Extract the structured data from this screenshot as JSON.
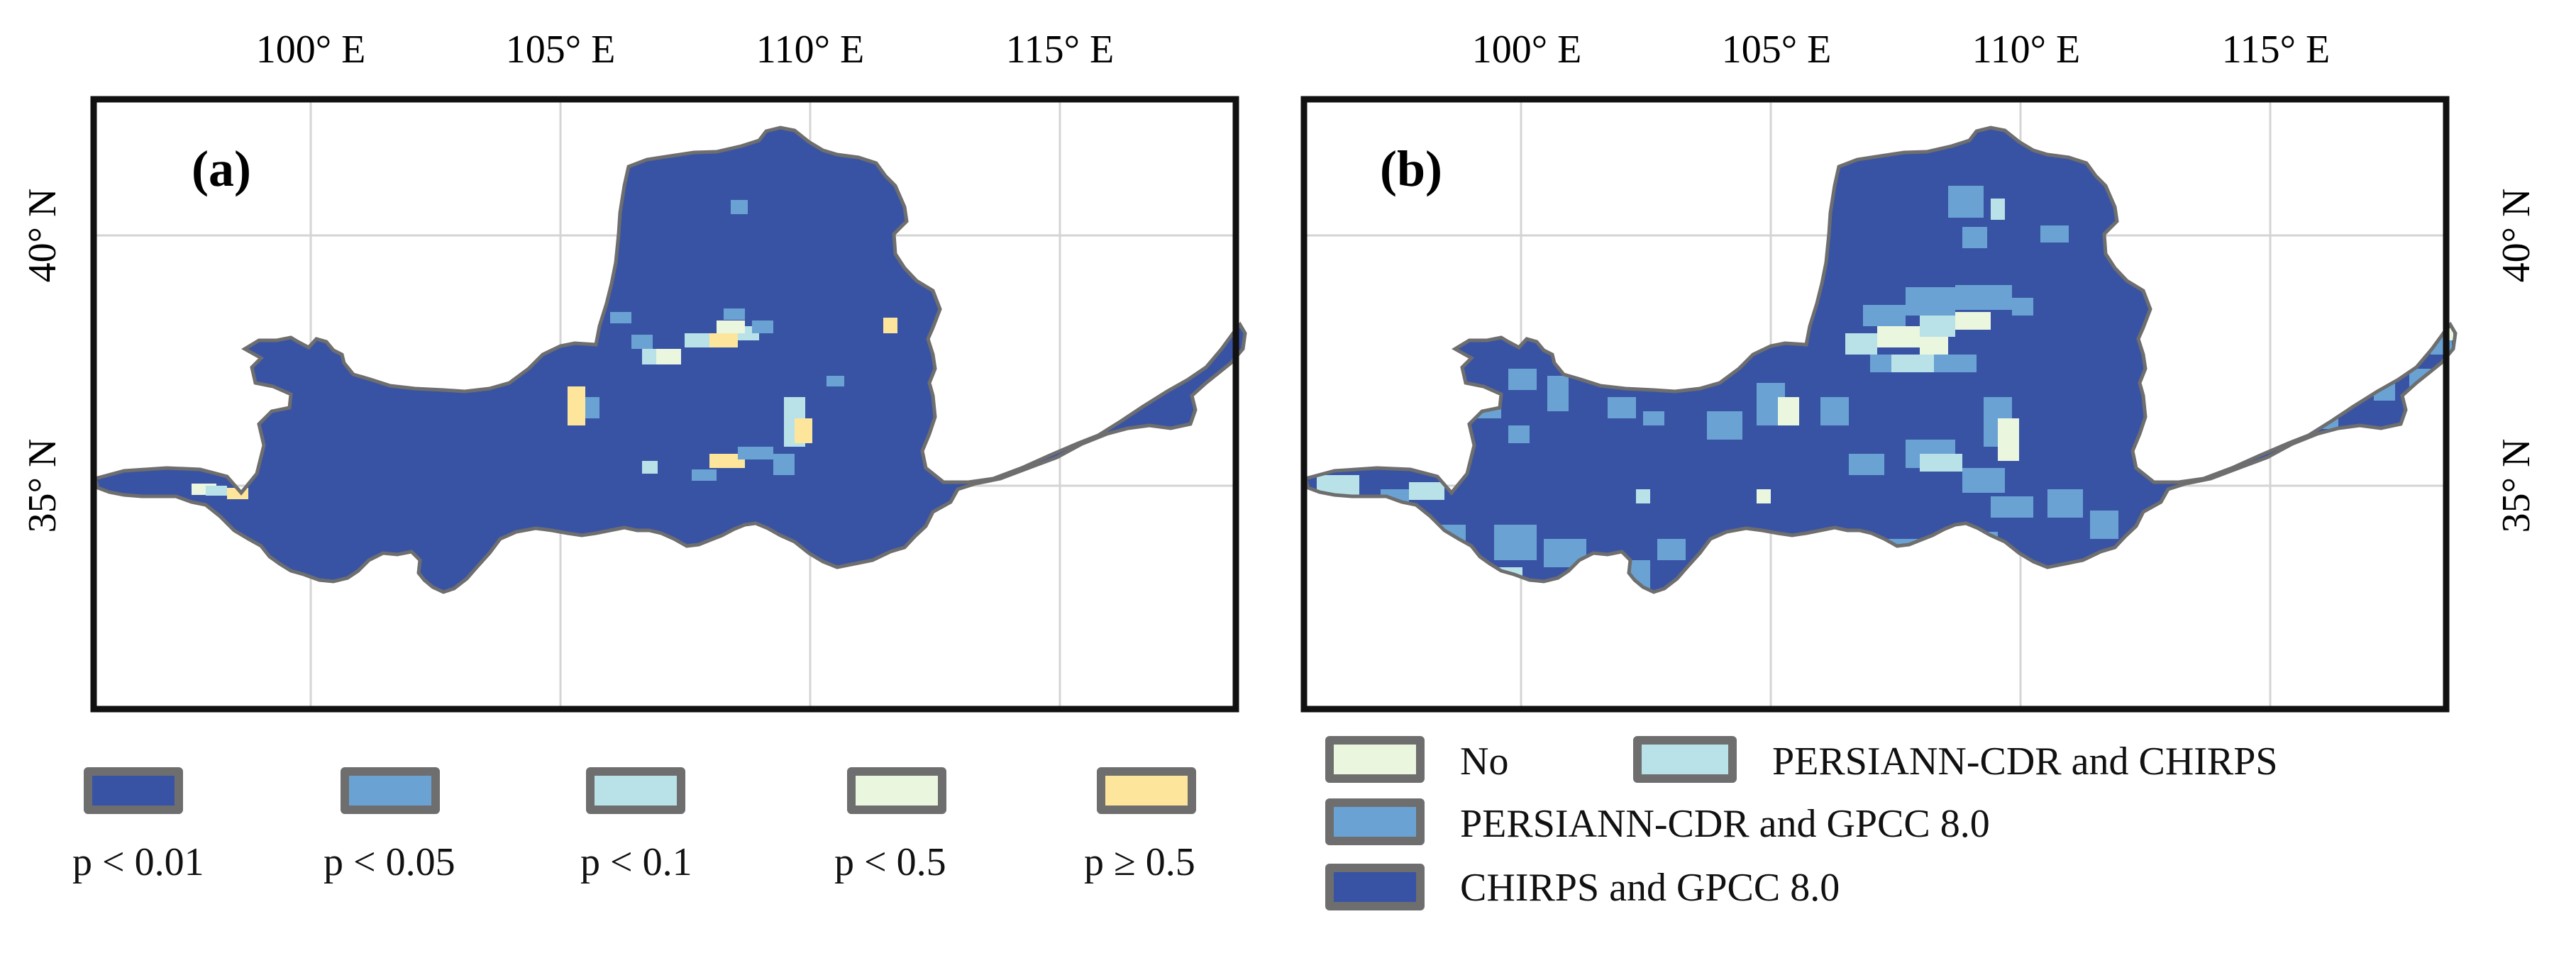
{
  "colors": {
    "p001": "#3953a4",
    "p005": "#6aa3d3",
    "p01": "#b9e2e8",
    "p05": "#eaf6de",
    "pge05": "#fde69b",
    "frame": "#111111",
    "outline": "#6e6e6e",
    "grid": "#d4d4d4",
    "swatch_border": "#6e6e6e"
  },
  "panels": [
    {
      "label": "(a)",
      "lon_ticks": [
        "100° E",
        "105° E",
        "110° E",
        "115° E"
      ],
      "lat_ticks": [
        "40° N",
        "35° N"
      ],
      "lat_tick_side": "left"
    },
    {
      "label": "(b)",
      "lon_ticks": [
        "100° E",
        "105° E",
        "110° E",
        "115° E"
      ],
      "lat_ticks": [
        "40° N",
        "35° N"
      ],
      "lat_tick_side": "right"
    }
  ],
  "legend_a": [
    {
      "label": "p < 0.01",
      "color": "#3953a4"
    },
    {
      "label": "p < 0.05",
      "color": "#6aa3d3"
    },
    {
      "label": "p < 0.1",
      "color": "#b9e2e8"
    },
    {
      "label": "p < 0.5",
      "color": "#eaf6de"
    },
    {
      "label": "p ≥ 0.5",
      "color": "#fde69b"
    }
  ],
  "legend_b": [
    {
      "label": "No",
      "color": "#eaf6de"
    },
    {
      "label": "PERSIANN-CDR and CHIRPS",
      "color": "#b9e2e8"
    },
    {
      "label": "PERSIANN-CDR and GPCC 8.0",
      "color": "#6aa3d3"
    },
    {
      "label": "CHIRPS and GPCC 8.0",
      "color": "#3953a4"
    }
  ]
}
